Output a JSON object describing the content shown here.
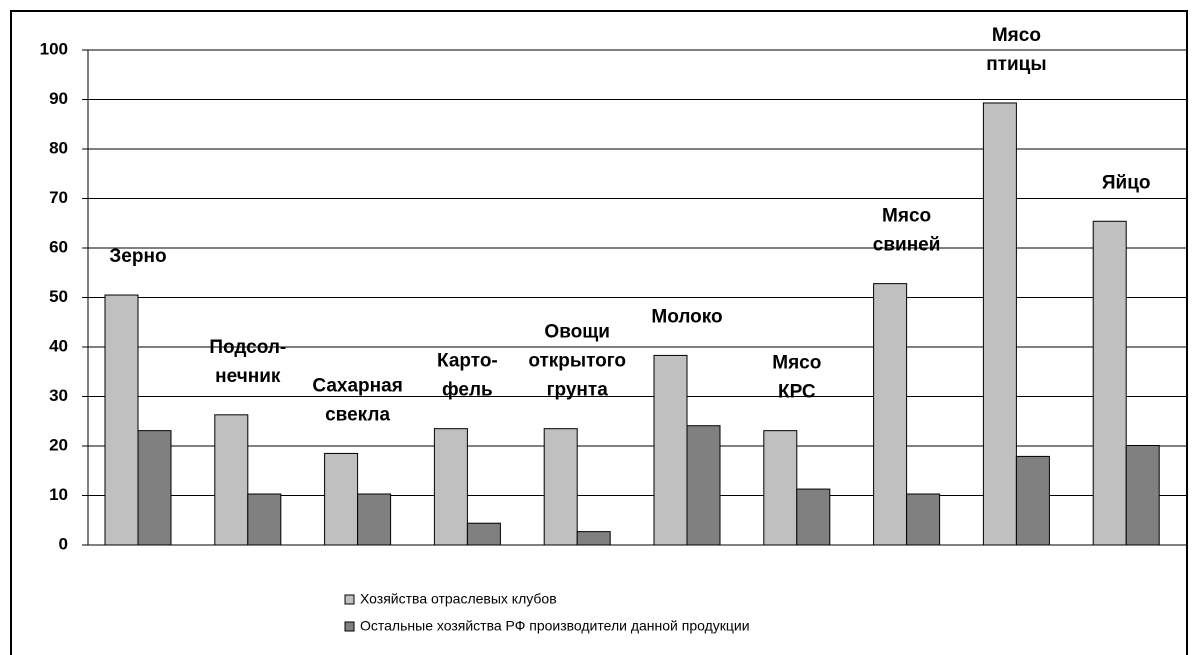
{
  "chart_data": {
    "type": "bar",
    "categories": [
      [
        "Зерно"
      ],
      [
        "Подсол-",
        "нечник"
      ],
      [
        "Сахарная",
        "свекла"
      ],
      [
        "Карто-",
        "фель"
      ],
      [
        "Овощи",
        "открытого",
        "грунта"
      ],
      [
        "Молоко"
      ],
      [
        "Мясо",
        "КРС"
      ],
      [
        "Мясо",
        "свиней"
      ],
      [
        "Мясо",
        "птицы"
      ],
      [
        "Яйцо"
      ]
    ],
    "series": [
      {
        "name": "Хозяйства отраслевых клубов",
        "color": "#c0c0c0",
        "values": [
          50.5,
          26.3,
          18.5,
          23.5,
          23.5,
          38.3,
          23.1,
          52.8,
          89.3,
          65.4
        ]
      },
      {
        "name": "Остальные хозяйства РФ производители данной продукции",
        "color": "#808080",
        "values": [
          23.1,
          10.3,
          10.3,
          4.4,
          2.7,
          24.1,
          11.3,
          10.3,
          17.9,
          20.1
        ]
      }
    ],
    "ylim": [
      0,
      100
    ],
    "yticks": [
      0,
      10,
      20,
      30,
      40,
      50,
      60,
      70,
      80,
      90,
      100
    ],
    "grid": true
  }
}
